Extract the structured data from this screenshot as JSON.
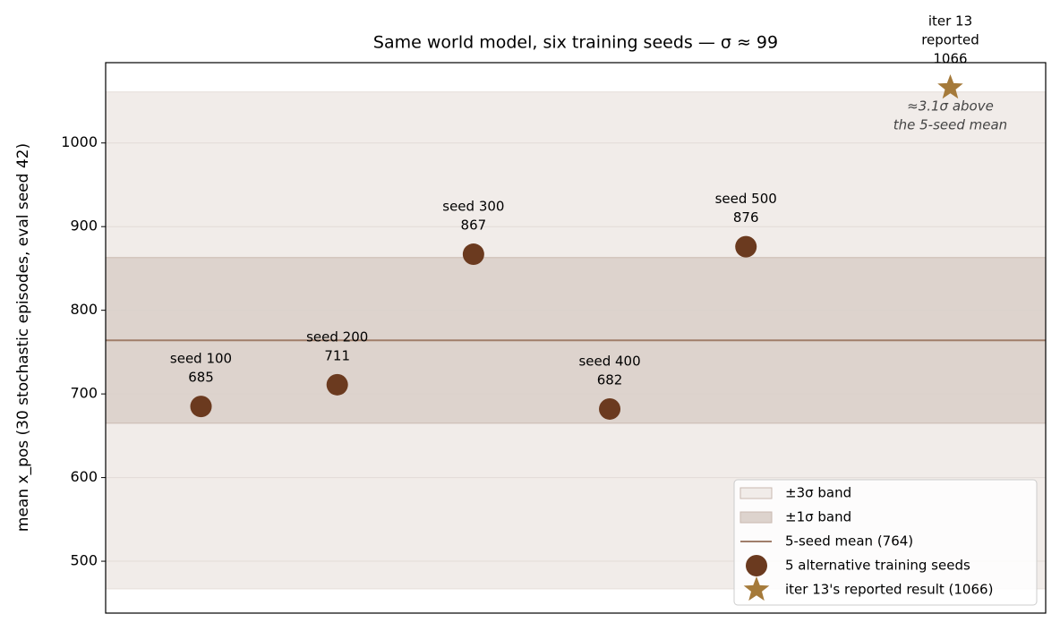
{
  "chart_data": {
    "type": "scatter",
    "title": "Same world model, six training seeds — σ ≈ 99",
    "ylabel": "mean x_pos (30 stochastic episodes, eval seed 42)",
    "xlim": [
      -0.7,
      6.2
    ],
    "ylim": [
      438,
      1096
    ],
    "yticks": [
      500,
      600,
      700,
      800,
      900,
      1000
    ],
    "grid": true,
    "bands": [
      {
        "name": "±3σ band",
        "lower": 467,
        "upper": 1061,
        "color": "#f1ece9"
      },
      {
        "name": "±1σ band",
        "lower": 665,
        "upper": 863,
        "color": "#ddd3cd"
      }
    ],
    "mean_line": {
      "name": "5-seed mean (764)",
      "value": 764,
      "color": "#a07e6a"
    },
    "series": [
      {
        "name": "5 alternative training seeds",
        "color": "#6b3a1f",
        "marker": "circle",
        "x": [
          0,
          1,
          2,
          3,
          4
        ],
        "values": [
          685,
          711,
          867,
          682,
          876
        ],
        "point_labels": [
          "seed 100",
          "seed 200",
          "seed 300",
          "seed 400",
          "seed 500"
        ]
      },
      {
        "name": "iter 13's reported result (1066)",
        "color": "#a57a3a",
        "marker": "star",
        "x": [
          5.5
        ],
        "values": [
          1066
        ],
        "point_labels": [
          [
            "iter 13",
            "reported"
          ]
        ]
      }
    ],
    "annotation": [
      "≈3.1σ above",
      "the 5-seed mean"
    ],
    "legend_loc": "lower right"
  }
}
